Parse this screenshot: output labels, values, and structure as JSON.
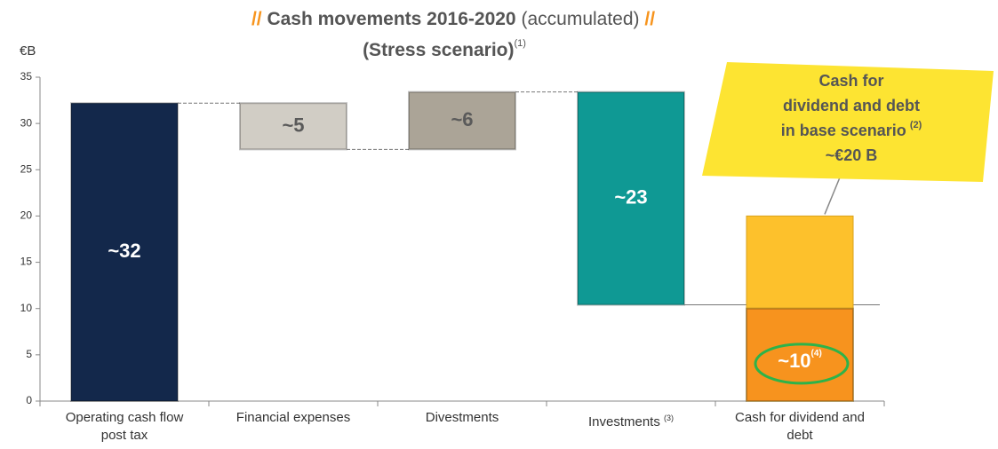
{
  "chart_data": {
    "type": "waterfall",
    "title": {
      "open": "//",
      "main": "Cash movements 2016-2020",
      "qualifier": "(accumulated)",
      "close": "//",
      "color_marks": "#f7941d"
    },
    "subtitle": {
      "text": "(Stress scenario)",
      "note": "(1)"
    },
    "y_label": "€B",
    "categories": [
      "Operating cash flow post tax",
      "Financial expenses",
      "Divestments",
      "Investments",
      "Cash for dividend and debt"
    ],
    "category_notes": [
      null,
      null,
      null,
      "(3)",
      null
    ],
    "measures": [
      "absolute",
      "relative",
      "relative",
      "relative",
      "total"
    ],
    "values": [
      32.2,
      -5,
      6.2,
      -23,
      10
    ],
    "value_labels": [
      "~32",
      "~5",
      "~6",
      "~23",
      "~10"
    ],
    "value_label_notes": [
      null,
      null,
      null,
      null,
      "(4)"
    ],
    "colors": [
      "#13284b",
      "#d1cdc5",
      "#aba497",
      "#0f9994",
      "#f7931e"
    ],
    "label_colors": [
      "#ffffff",
      "#5a5a5a",
      "#5a5a5a",
      "#ffffff",
      "#ffffff"
    ],
    "base_scenario": {
      "value": 20,
      "color": "#fdc12c",
      "lines": [
        "Cash for",
        "dividend and debt",
        "in base scenario"
      ],
      "note": "(2)",
      "value_label": "~€20 B",
      "callout_color": "#fde432"
    },
    "ylim": [
      0,
      35
    ],
    "yticks": [
      0,
      5,
      10,
      15,
      20,
      25,
      30,
      35
    ],
    "grid": false
  }
}
